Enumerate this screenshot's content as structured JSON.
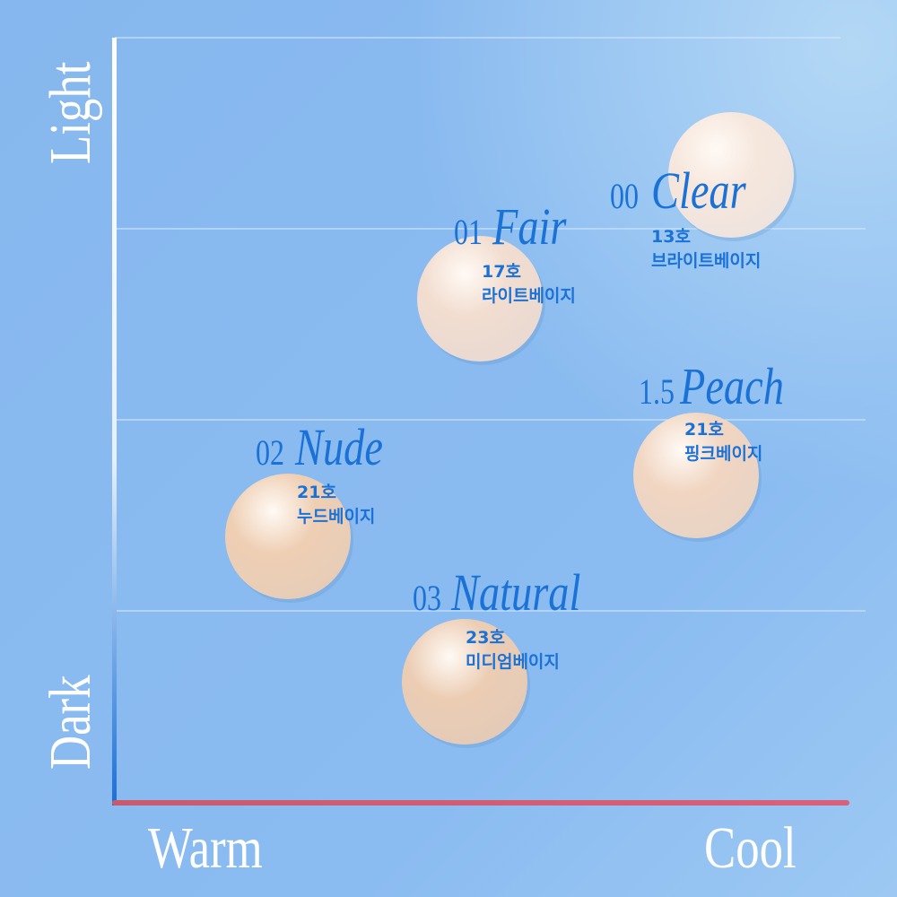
{
  "axes": {
    "top": "Light",
    "bottom": "Dark",
    "left": "Warm",
    "right": "Cool"
  },
  "shades": [
    {
      "number": "00",
      "name": "Clear",
      "code": "13호",
      "tone": "브라이트베이지"
    },
    {
      "number": "01",
      "name": "Fair",
      "code": "17호",
      "tone": "라이트베이지"
    },
    {
      "number": "1.5",
      "name": "Peach",
      "code": "21호",
      "tone": "핑크베이지"
    },
    {
      "number": "02",
      "name": "Nude",
      "code": "21호",
      "tone": "누드베이지"
    },
    {
      "number": "03",
      "name": "Natural",
      "code": "23호",
      "tone": "미디엄베이지"
    }
  ]
}
